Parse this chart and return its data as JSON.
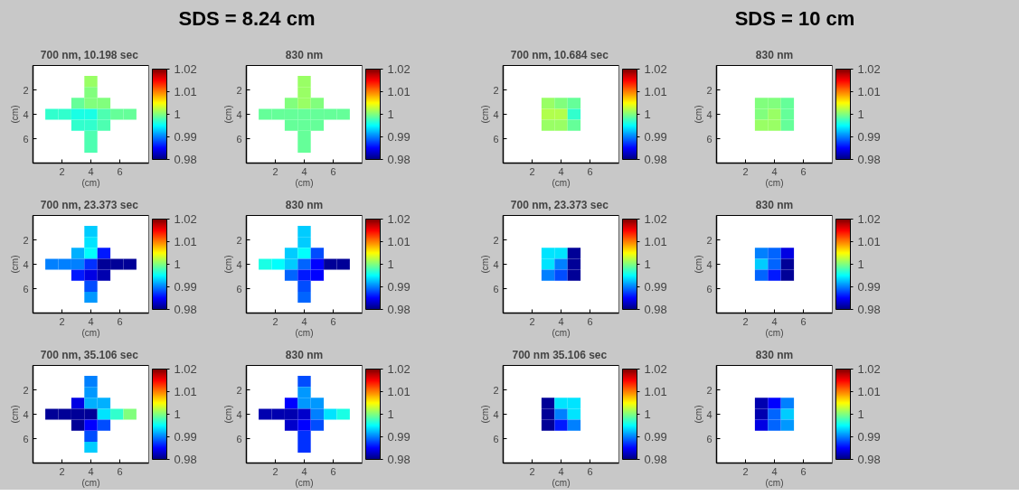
{
  "chart_data": [
    {
      "type": "heatmap",
      "title": "700 nm,  10.198 sec",
      "annotations": [
        "SDS = 8.24 cm"
      ],
      "xlabel": "(cm)",
      "ylabel": "(cm)",
      "x": [
        1.3,
        2.2,
        3.1,
        4.0,
        4.9,
        5.8,
        6.7
      ],
      "y": [
        1.3,
        2.2,
        3.1,
        4.0,
        4.9,
        5.8,
        6.7
      ],
      "xlim": [
        0,
        8
      ],
      "ylim": [
        8,
        0
      ],
      "xticks": [
        2,
        4,
        6
      ],
      "yticks": [
        2,
        4,
        6
      ],
      "clim": [
        0.98,
        1.02
      ],
      "cticks": [
        0.98,
        0.99,
        1,
        1.01,
        1.02
      ],
      "cells": [
        [
          null,
          null,
          null,
          1.001,
          null,
          null,
          null
        ],
        [
          null,
          null,
          null,
          1.0,
          null,
          null,
          null
        ],
        [
          null,
          null,
          0.999,
          1.0,
          1.0,
          null,
          null
        ],
        [
          0.997,
          0.997,
          0.996,
          0.996,
          0.998,
          0.999,
          0.999
        ],
        [
          null,
          null,
          0.997,
          0.997,
          0.998,
          null,
          null
        ],
        [
          null,
          null,
          null,
          0.998,
          null,
          null,
          null
        ],
        [
          null,
          null,
          null,
          0.998,
          null,
          null,
          null
        ]
      ]
    },
    {
      "type": "heatmap",
      "title": "830 nm",
      "xlabel": "(cm)",
      "ylabel": "(cm)",
      "x": [
        1.3,
        2.2,
        3.1,
        4.0,
        4.9,
        5.8,
        6.7
      ],
      "y": [
        1.3,
        2.2,
        3.1,
        4.0,
        4.9,
        5.8,
        6.7
      ],
      "xlim": [
        0,
        8
      ],
      "ylim": [
        8,
        0
      ],
      "xticks": [
        2,
        4,
        6
      ],
      "yticks": [
        2,
        4,
        6
      ],
      "clim": [
        0.98,
        1.02
      ],
      "cticks": [
        0.98,
        0.99,
        1,
        1.01,
        1.02
      ],
      "cells": [
        [
          null,
          null,
          null,
          1.001,
          null,
          null,
          null
        ],
        [
          null,
          null,
          null,
          1.001,
          null,
          null,
          null
        ],
        [
          null,
          null,
          1.0,
          1.001,
          1.0,
          null,
          null
        ],
        [
          0.999,
          0.999,
          0.999,
          0.999,
          0.999,
          0.999,
          0.999
        ],
        [
          null,
          null,
          0.999,
          0.999,
          0.999,
          null,
          null
        ],
        [
          null,
          null,
          null,
          0.999,
          null,
          null,
          null
        ],
        [
          null,
          null,
          null,
          0.999,
          null,
          null,
          null
        ]
      ]
    },
    {
      "type": "heatmap",
      "title": "700 nm,  10.684 sec",
      "annotations": [
        "SDS = 10 cm"
      ],
      "xlabel": "(cm)",
      "ylabel": "(cm)",
      "x": [
        3.1,
        4.0,
        4.9
      ],
      "y": [
        3.1,
        4.0,
        4.9
      ],
      "xlim": [
        0,
        8
      ],
      "ylim": [
        8,
        0
      ],
      "xticks": [
        2,
        4,
        6
      ],
      "yticks": [
        2,
        4,
        6
      ],
      "clim": [
        0.98,
        1.02
      ],
      "cticks": [
        0.98,
        0.99,
        1,
        1.01,
        1.02
      ],
      "cells": [
        [
          1.001,
          1.0,
          0.999
        ],
        [
          1.002,
          1.002,
          0.997
        ],
        [
          1.001,
          1.001,
          0.999
        ]
      ]
    },
    {
      "type": "heatmap",
      "title": "830 nm",
      "xlabel": "(cm)",
      "ylabel": "(cm)",
      "x": [
        3.1,
        4.0,
        4.9
      ],
      "y": [
        3.1,
        4.0,
        4.9
      ],
      "xlim": [
        0,
        8
      ],
      "ylim": [
        8,
        0
      ],
      "xticks": [
        2,
        4,
        6
      ],
      "yticks": [
        2,
        4,
        6
      ],
      "clim": [
        0.98,
        1.02
      ],
      "cticks": [
        0.98,
        0.99,
        1,
        1.01,
        1.02
      ],
      "cells": [
        [
          1.0,
          1.0,
          0.999
        ],
        [
          1.0,
          1.001,
          0.999
        ],
        [
          1.001,
          1.001,
          0.999
        ]
      ]
    },
    {
      "type": "heatmap",
      "title": "700 nm,  23.373 sec",
      "xlabel": "(cm)",
      "ylabel": "(cm)",
      "x": [
        1.3,
        2.2,
        3.1,
        4.0,
        4.9,
        5.8,
        6.7
      ],
      "y": [
        1.3,
        2.2,
        3.1,
        4.0,
        4.9,
        5.8,
        6.7
      ],
      "xlim": [
        0,
        8
      ],
      "ylim": [
        8,
        0
      ],
      "xticks": [
        2,
        4,
        6
      ],
      "yticks": [
        2,
        4,
        6
      ],
      "clim": [
        0.98,
        1.02
      ],
      "cticks": [
        0.98,
        0.99,
        1,
        1.01,
        1.02
      ],
      "cells": [
        [
          null,
          null,
          null,
          0.993,
          null,
          null,
          null
        ],
        [
          null,
          null,
          null,
          0.994,
          null,
          null,
          null
        ],
        [
          null,
          null,
          0.992,
          0.995,
          0.986,
          null,
          null
        ],
        [
          0.99,
          0.99,
          0.99,
          0.987,
          0.981,
          0.981,
          0.981
        ],
        [
          null,
          null,
          0.986,
          0.984,
          0.982,
          null,
          null
        ],
        [
          null,
          null,
          null,
          0.988,
          null,
          null,
          null
        ],
        [
          null,
          null,
          null,
          0.991,
          null,
          null,
          null
        ]
      ]
    },
    {
      "type": "heatmap",
      "title": "830 nm",
      "xlabel": "(cm)",
      "ylabel": "(cm)",
      "x": [
        1.3,
        2.2,
        3.1,
        4.0,
        4.9,
        5.8,
        6.7
      ],
      "y": [
        1.3,
        2.2,
        3.1,
        4.0,
        4.9,
        5.8,
        6.7
      ],
      "xlim": [
        0,
        8
      ],
      "ylim": [
        8,
        0
      ],
      "xticks": [
        2,
        4,
        6
      ],
      "yticks": [
        2,
        4,
        6
      ],
      "clim": [
        0.98,
        1.02
      ],
      "cticks": [
        0.98,
        0.99,
        1,
        1.01,
        1.02
      ],
      "cells": [
        [
          null,
          null,
          null,
          0.993,
          null,
          null,
          null
        ],
        [
          null,
          null,
          null,
          0.993,
          null,
          null,
          null
        ],
        [
          null,
          null,
          0.993,
          0.995,
          0.988,
          null,
          null
        ],
        [
          0.996,
          0.995,
          0.993,
          0.989,
          0.985,
          0.981,
          0.981
        ],
        [
          null,
          null,
          0.989,
          0.986,
          0.985,
          null,
          null
        ],
        [
          null,
          null,
          null,
          0.988,
          null,
          null,
          null
        ],
        [
          null,
          null,
          null,
          0.989,
          null,
          null,
          null
        ]
      ]
    },
    {
      "type": "heatmap",
      "title": "700 nm,  23.373 sec",
      "xlabel": "(cm)",
      "ylabel": "(cm)",
      "x": [
        3.1,
        4.0,
        4.9
      ],
      "y": [
        3.1,
        4.0,
        4.9
      ],
      "xlim": [
        0,
        8
      ],
      "ylim": [
        8,
        0
      ],
      "xticks": [
        2,
        4,
        6
      ],
      "yticks": [
        2,
        4,
        6
      ],
      "clim": [
        0.98,
        1.02
      ],
      "cticks": [
        0.98,
        0.99,
        1,
        1.01,
        1.02
      ],
      "cells": [
        [
          0.994,
          0.994,
          0.981
        ],
        [
          0.994,
          0.99,
          0.981
        ],
        [
          0.99,
          0.988,
          0.981
        ]
      ]
    },
    {
      "type": "heatmap",
      "title": "830 nm",
      "xlabel": "(cm)",
      "ylabel": "(cm)",
      "x": [
        3.1,
        4.0,
        4.9
      ],
      "y": [
        3.1,
        4.0,
        4.9
      ],
      "xlim": [
        0,
        8
      ],
      "ylim": [
        8,
        0
      ],
      "xticks": [
        2,
        4,
        6
      ],
      "yticks": [
        2,
        4,
        6
      ],
      "clim": [
        0.98,
        1.02
      ],
      "cticks": [
        0.98,
        0.99,
        1,
        1.01,
        1.02
      ],
      "cells": [
        [
          0.99,
          0.989,
          0.984
        ],
        [
          0.993,
          0.989,
          0.981
        ],
        [
          0.989,
          0.986,
          0.981
        ]
      ]
    },
    {
      "type": "heatmap",
      "title": "700 nm,  35.106 sec",
      "xlabel": "(cm)",
      "ylabel": "(cm)",
      "x": [
        1.3,
        2.2,
        3.1,
        4.0,
        4.9,
        5.8,
        6.7
      ],
      "y": [
        1.3,
        2.2,
        3.1,
        4.0,
        4.9,
        5.8,
        6.7
      ],
      "xlim": [
        0,
        8
      ],
      "ylim": [
        8,
        0
      ],
      "xticks": [
        2,
        4,
        6
      ],
      "yticks": [
        2,
        4,
        6
      ],
      "clim": [
        0.98,
        1.02
      ],
      "cticks": [
        0.98,
        0.99,
        1,
        1.01,
        1.02
      ],
      "cells": [
        [
          null,
          null,
          null,
          0.99,
          null,
          null,
          null
        ],
        [
          null,
          null,
          null,
          0.991,
          null,
          null,
          null
        ],
        [
          null,
          null,
          0.984,
          0.992,
          0.992,
          null,
          null
        ],
        [
          0.981,
          0.981,
          0.981,
          0.981,
          0.994,
          0.997,
          1.0
        ],
        [
          null,
          null,
          0.981,
          0.985,
          0.988,
          null,
          null
        ],
        [
          null,
          null,
          null,
          0.988,
          null,
          null,
          null
        ],
        [
          null,
          null,
          null,
          0.993,
          null,
          null,
          null
        ]
      ]
    },
    {
      "type": "heatmap",
      "title": "830 nm",
      "xlabel": "(cm)",
      "ylabel": "(cm)",
      "x": [
        1.3,
        2.2,
        3.1,
        4.0,
        4.9,
        5.8,
        6.7
      ],
      "y": [
        1.3,
        2.2,
        3.1,
        4.0,
        4.9,
        5.8,
        6.7
      ],
      "xlim": [
        0,
        8
      ],
      "ylim": [
        8,
        0
      ],
      "xticks": [
        2,
        4,
        6
      ],
      "yticks": [
        2,
        4,
        6
      ],
      "clim": [
        0.98,
        1.02
      ],
      "cticks": [
        0.98,
        0.99,
        1,
        1.01,
        1.02
      ],
      "cells": [
        [
          null,
          null,
          null,
          0.988,
          null,
          null,
          null
        ],
        [
          null,
          null,
          null,
          0.991,
          null,
          null,
          null
        ],
        [
          null,
          null,
          0.985,
          0.991,
          0.991,
          null,
          null
        ],
        [
          0.982,
          0.982,
          0.982,
          0.983,
          0.99,
          0.994,
          0.996
        ],
        [
          null,
          null,
          0.983,
          0.985,
          0.988,
          null,
          null
        ],
        [
          null,
          null,
          null,
          0.987,
          null,
          null,
          null
        ],
        [
          null,
          null,
          null,
          0.987,
          null,
          null,
          null
        ]
      ]
    },
    {
      "type": "heatmap",
      "title": "700 nm  35.106 sec",
      "xlabel": "(cm)",
      "ylabel": "(cm)",
      "x": [
        3.1,
        4.0,
        4.9
      ],
      "y": [
        3.1,
        4.0,
        4.9
      ],
      "xlim": [
        0,
        8
      ],
      "ylim": [
        8,
        0
      ],
      "xticks": [
        2,
        4,
        6
      ],
      "yticks": [
        2,
        4,
        6
      ],
      "clim": [
        0.98,
        1.02
      ],
      "cticks": [
        0.98,
        0.99,
        1,
        1.01,
        1.02
      ],
      "cells": [
        [
          0.981,
          0.994,
          0.994
        ],
        [
          0.981,
          0.99,
          0.994
        ],
        [
          0.981,
          0.986,
          0.99
        ]
      ]
    },
    {
      "type": "heatmap",
      "title": "830 nm",
      "xlabel": "(cm)",
      "ylabel": "(cm)",
      "x": [
        3.1,
        4.0,
        4.9
      ],
      "y": [
        3.1,
        4.0,
        4.9
      ],
      "xlim": [
        0,
        8
      ],
      "ylim": [
        8,
        0
      ],
      "xticks": [
        2,
        4,
        6
      ],
      "yticks": [
        2,
        4,
        6
      ],
      "clim": [
        0.98,
        1.02
      ],
      "cticks": [
        0.98,
        0.99,
        1,
        1.01,
        1.02
      ],
      "cells": [
        [
          0.982,
          0.985,
          0.99
        ],
        [
          0.982,
          0.989,
          0.993
        ],
        [
          0.984,
          0.989,
          0.991
        ]
      ]
    }
  ]
}
